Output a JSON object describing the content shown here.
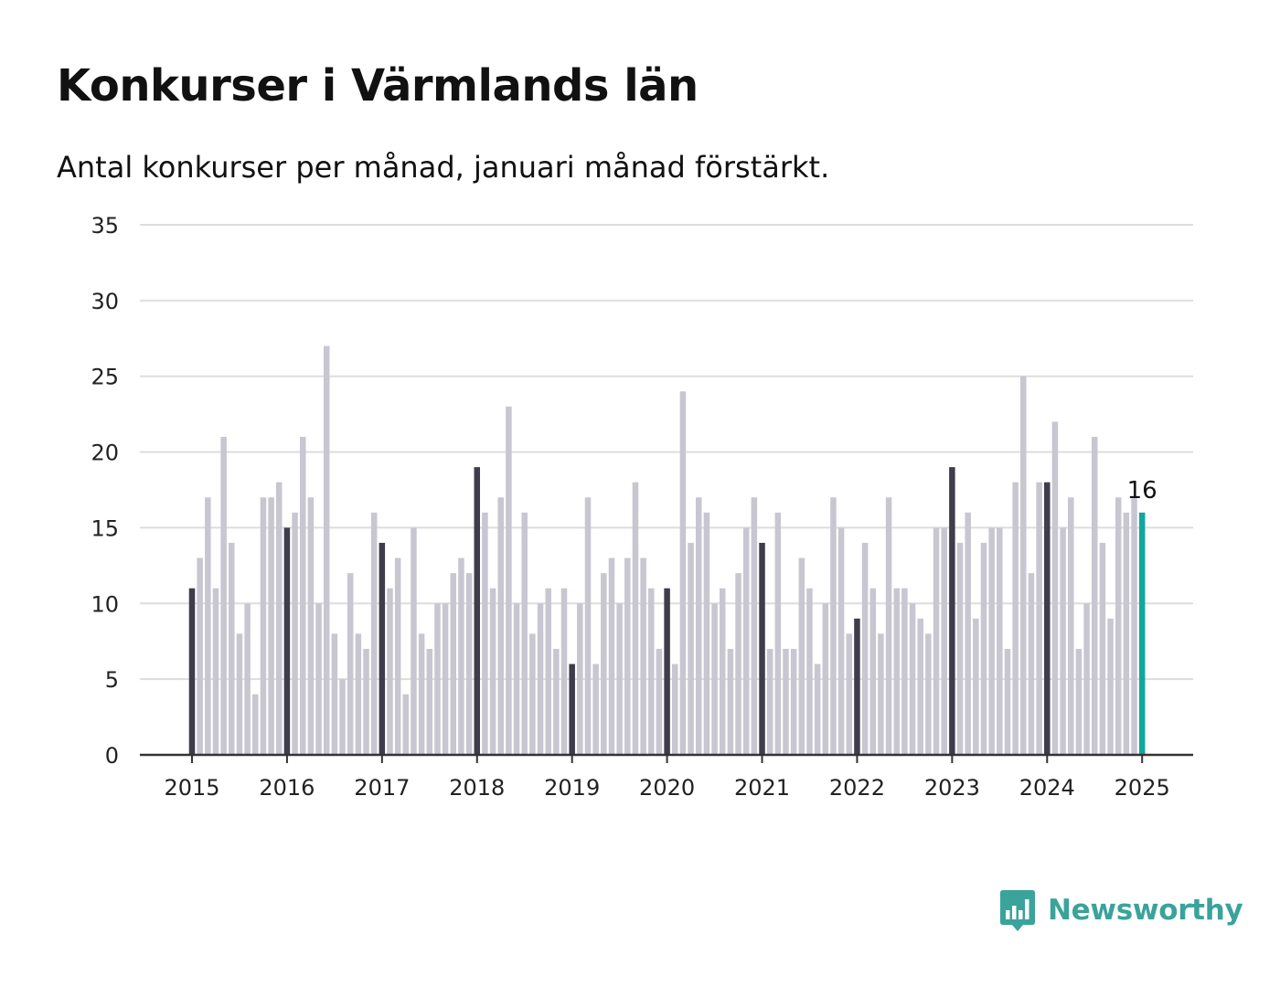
{
  "title": "Konkurser i Värmlands län",
  "subtitle": "Antal konkurser per månad, januari månad förstärkt.",
  "brand": {
    "name": "Newsworthy",
    "icon": "bar-chart-speech-bubble-icon",
    "color": "#3aa39a"
  },
  "colors": {
    "regular": "#c8c6d0",
    "january": "#3f3d4c",
    "latest": "#12a79d",
    "grid": "#dddddd",
    "axis": "#333333"
  },
  "chart_data": {
    "type": "bar",
    "title": "Konkurser i Värmlands län",
    "subtitle": "Antal konkurser per månad, januari månad förstärkt.",
    "xlabel": "",
    "ylabel": "",
    "ylim": [
      0,
      35
    ],
    "yticks": [
      0,
      5,
      10,
      15,
      20,
      25,
      30,
      35
    ],
    "xticks": [
      "2015",
      "2016",
      "2017",
      "2018",
      "2019",
      "2020",
      "2021",
      "2022",
      "2023",
      "2024",
      "2025"
    ],
    "start": "2015-01",
    "end": "2025-01",
    "grid": true,
    "legend": "none",
    "highlight": "january",
    "annotation": {
      "x": "2025-01",
      "text": "16"
    },
    "values": [
      11,
      13,
      17,
      11,
      21,
      14,
      8,
      10,
      4,
      17,
      17,
      18,
      15,
      16,
      21,
      17,
      10,
      27,
      8,
      5,
      12,
      8,
      7,
      16,
      14,
      11,
      13,
      4,
      15,
      8,
      7,
      10,
      10,
      12,
      13,
      12,
      19,
      16,
      11,
      17,
      23,
      10,
      16,
      8,
      10,
      11,
      7,
      11,
      6,
      10,
      17,
      6,
      12,
      13,
      10,
      13,
      18,
      13,
      11,
      7,
      11,
      6,
      24,
      14,
      17,
      16,
      10,
      11,
      7,
      12,
      15,
      17,
      14,
      7,
      16,
      7,
      7,
      13,
      11,
      6,
      10,
      17,
      15,
      8,
      9,
      14,
      11,
      8,
      17,
      11,
      11,
      10,
      9,
      8,
      15,
      15,
      19,
      14,
      16,
      9,
      14,
      15,
      15,
      7,
      18,
      25,
      12,
      18,
      18,
      22,
      15,
      17,
      7,
      10,
      21,
      14,
      9,
      17,
      16,
      17,
      16
    ]
  }
}
